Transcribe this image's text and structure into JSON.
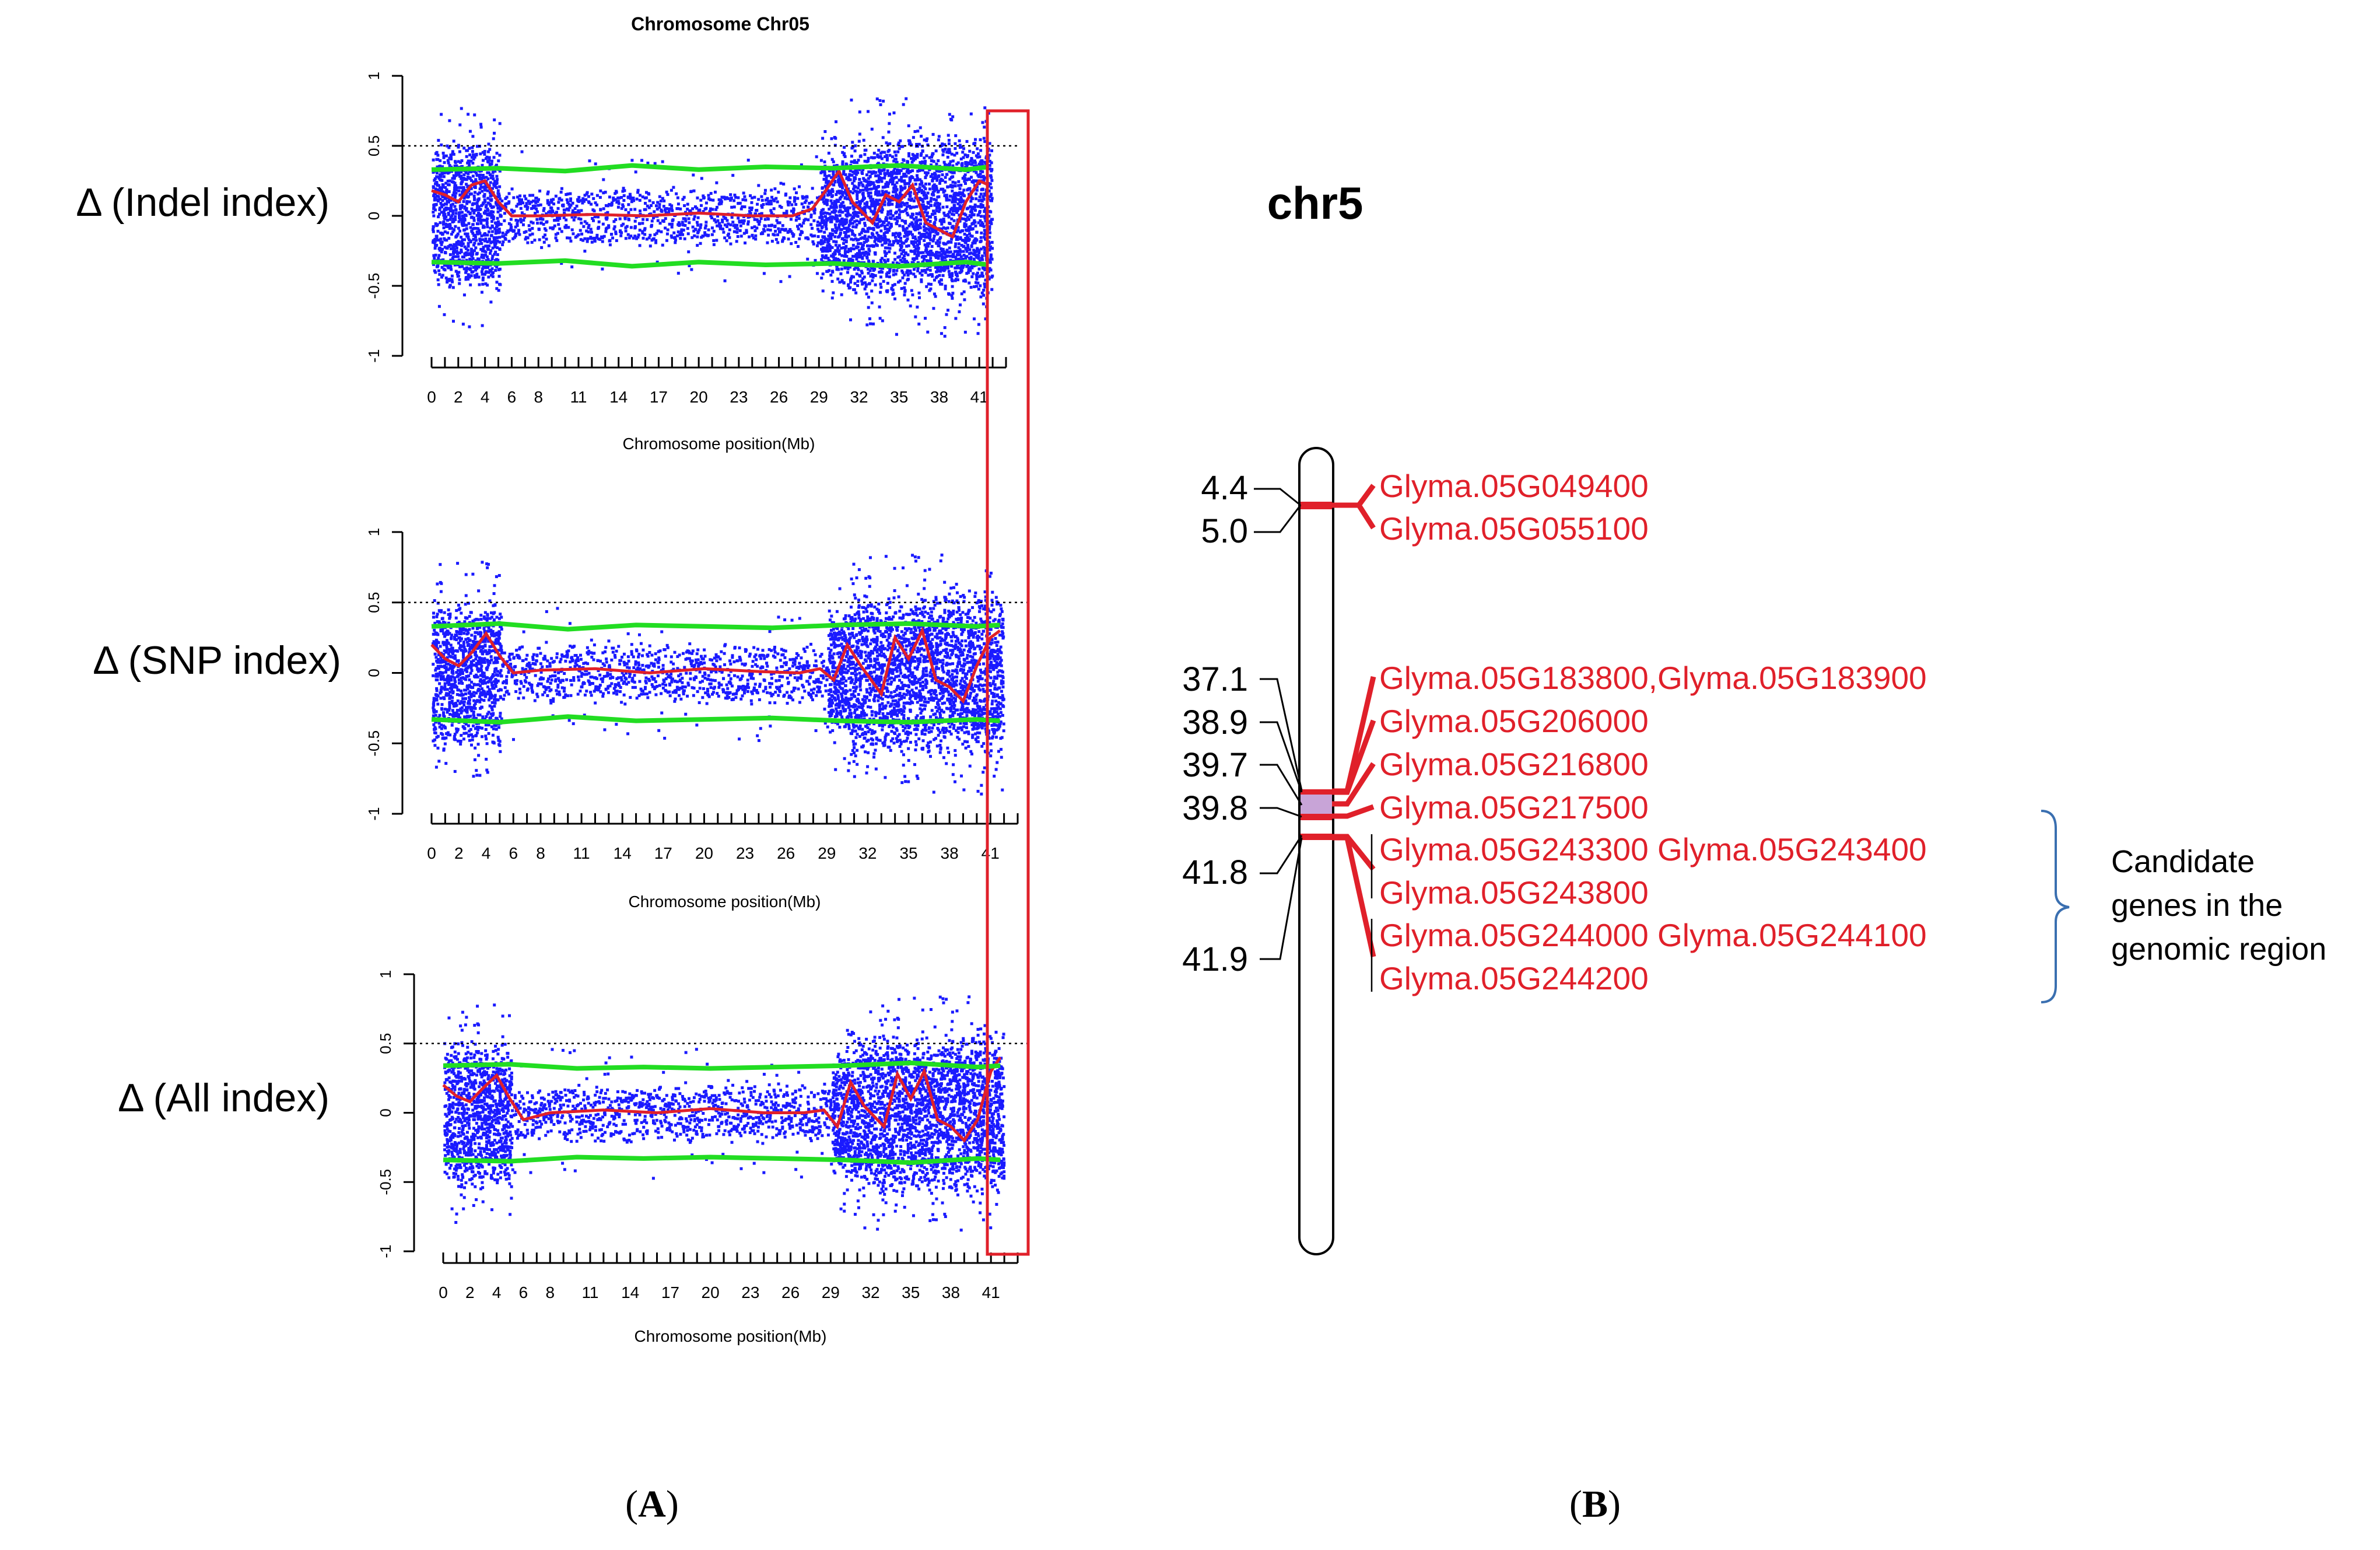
{
  "panel_a": {
    "title": "Chromosome Chr05",
    "panel_label_prefix": "(",
    "panel_label_letter": "A",
    "panel_label_suffix": ")",
    "colors": {
      "points": "#1a1aff",
      "smooth": "#e0202a",
      "threshold": "#22dd22",
      "highlight_box": "#e0202a",
      "dotted": "#000000"
    }
  },
  "panel_b": {
    "chromosome_label": "chr5",
    "panel_label_prefix": "(",
    "panel_label_letter": "B",
    "panel_label_suffix": ")",
    "positions": [
      "4.4",
      "5.0",
      "37.1",
      "38.9",
      "39.7",
      "39.8",
      "41.8",
      "41.9"
    ],
    "genes": [
      "Glyma.05G049400",
      "Glyma.05G055100",
      "Glyma.05G183800,Glyma.05G183900",
      "Glyma.05G206000",
      "Glyma.05G216800",
      "Glyma.05G217500",
      "Glyma.05G243300 Glyma.05G243400",
      "Glyma.05G243800",
      "Glyma.05G244000 Glyma.05G244100",
      "Glyma.05G244200"
    ],
    "candidate_note": [
      "Candidate",
      "genes in the",
      "genomic region"
    ],
    "colors": {
      "gene_text": "#e0202a",
      "marker": "#e0202a",
      "bracket": "#3a6fb0",
      "highlight": "#9b59b6"
    }
  },
  "chart_data": [
    {
      "type": "scatter",
      "title": "Chromosome Chr05",
      "ylabel": "Δ (Indel index)",
      "xlabel": "Chromosome position(Mb)",
      "xlim": [
        0,
        43
      ],
      "ylim": [
        -1,
        1
      ],
      "x_tick_labels": [
        "0",
        "2",
        "4",
        "6",
        "8",
        "11",
        "14",
        "17",
        "20",
        "23",
        "26",
        "29",
        "32",
        "35",
        "38",
        "41"
      ],
      "x_tick_values": [
        0,
        2,
        4,
        6,
        8,
        11,
        14,
        17,
        20,
        23,
        26,
        29,
        32,
        35,
        38,
        41
      ],
      "y_tick_labels": [
        "-1",
        "-0.5",
        "0",
        "0.5",
        "1"
      ],
      "y_tick_values": [
        -1,
        -0.5,
        0,
        0.5,
        1
      ],
      "significance_line": 0.5,
      "highlight_region_mb": [
        40.5,
        43
      ],
      "series": [
        {
          "name": "smoothed delta",
          "x": [
            0,
            1,
            2,
            3,
            4,
            5,
            6,
            8,
            12,
            16,
            20,
            24,
            27,
            28.5,
            29.5,
            30.5,
            31.5,
            33,
            34,
            35,
            36,
            37,
            38,
            39,
            40,
            41,
            41.7
          ],
          "y": [
            0.18,
            0.15,
            0.1,
            0.22,
            0.25,
            0.1,
            0.0,
            0.0,
            0.01,
            0.0,
            0.02,
            0.0,
            0.0,
            0.05,
            0.18,
            0.32,
            0.1,
            -0.05,
            0.15,
            0.1,
            0.22,
            -0.05,
            -0.1,
            -0.15,
            0.1,
            0.25,
            0.22
          ]
        },
        {
          "name": "upper threshold",
          "x": [
            0,
            5,
            10,
            15,
            20,
            25,
            30,
            35,
            40,
            41.7
          ],
          "y": [
            0.33,
            0.34,
            0.32,
            0.36,
            0.33,
            0.35,
            0.34,
            0.36,
            0.33,
            0.35
          ]
        },
        {
          "name": "lower threshold",
          "x": [
            0,
            5,
            10,
            15,
            20,
            25,
            30,
            35,
            40,
            41.7
          ],
          "y": [
            -0.33,
            -0.34,
            -0.32,
            -0.36,
            -0.33,
            -0.35,
            -0.34,
            -0.36,
            -0.33,
            -0.35
          ]
        }
      ]
    },
    {
      "type": "scatter",
      "title": "",
      "ylabel": "Δ (SNP index)",
      "xlabel": "Chromosome position(Mb)",
      "xlim": [
        0,
        43
      ],
      "ylim": [
        -1,
        1
      ],
      "x_tick_labels": [
        "0",
        "2",
        "4",
        "6",
        "8",
        "11",
        "14",
        "17",
        "20",
        "23",
        "26",
        "29",
        "32",
        "35",
        "38",
        "41"
      ],
      "x_tick_values": [
        0,
        2,
        4,
        6,
        8,
        11,
        14,
        17,
        20,
        23,
        26,
        29,
        32,
        35,
        38,
        41
      ],
      "y_tick_labels": [
        "-1",
        "-0.5",
        "0",
        "0.5",
        "1"
      ],
      "y_tick_values": [
        -1,
        -0.5,
        0,
        0.5,
        1
      ],
      "significance_line": 0.5,
      "highlight_region_mb": [
        40.5,
        43
      ],
      "series": [
        {
          "name": "smoothed delta",
          "x": [
            0,
            1,
            2,
            3,
            4,
            5,
            6,
            8,
            12,
            16,
            20,
            24,
            27,
            28.5,
            29.5,
            30.5,
            31.5,
            33,
            34,
            35,
            36,
            37,
            38,
            39,
            40,
            41,
            41.7
          ],
          "y": [
            0.2,
            0.1,
            0.05,
            0.15,
            0.28,
            0.12,
            0.0,
            0.02,
            0.03,
            0.0,
            0.03,
            0.01,
            0.0,
            0.03,
            -0.05,
            0.2,
            0.05,
            -0.15,
            0.25,
            0.1,
            0.3,
            -0.05,
            -0.1,
            -0.2,
            0.05,
            0.25,
            0.3
          ]
        },
        {
          "name": "upper threshold",
          "x": [
            0,
            5,
            10,
            15,
            20,
            25,
            30,
            35,
            40,
            41.7
          ],
          "y": [
            0.33,
            0.35,
            0.31,
            0.34,
            0.33,
            0.32,
            0.34,
            0.35,
            0.33,
            0.34
          ]
        },
        {
          "name": "lower threshold",
          "x": [
            0,
            5,
            10,
            15,
            20,
            25,
            30,
            35,
            40,
            41.7
          ],
          "y": [
            -0.33,
            -0.35,
            -0.31,
            -0.34,
            -0.33,
            -0.32,
            -0.34,
            -0.35,
            -0.33,
            -0.34
          ]
        }
      ]
    },
    {
      "type": "scatter",
      "title": "",
      "ylabel": "Δ (All index)",
      "xlabel": "Chromosome position(Mb)",
      "xlim": [
        0,
        43
      ],
      "ylim": [
        -1,
        1
      ],
      "x_tick_labels": [
        "0",
        "2",
        "4",
        "6",
        "8",
        "11",
        "14",
        "17",
        "20",
        "23",
        "26",
        "29",
        "32",
        "35",
        "38",
        "41"
      ],
      "x_tick_values": [
        0,
        2,
        4,
        6,
        8,
        11,
        14,
        17,
        20,
        23,
        26,
        29,
        32,
        35,
        38,
        41
      ],
      "y_tick_labels": [
        "-1",
        "-0.5",
        "0",
        "0.5",
        "1"
      ],
      "y_tick_values": [
        -1,
        -0.5,
        0,
        0.5,
        1
      ],
      "significance_line": 0.5,
      "highlight_region_mb": [
        40.5,
        43
      ],
      "series": [
        {
          "name": "smoothed delta",
          "x": [
            0,
            1,
            2,
            3,
            4,
            5,
            6,
            8,
            12,
            16,
            20,
            24,
            27,
            28.5,
            29.5,
            30.5,
            31.5,
            33,
            34,
            35,
            36,
            37,
            38,
            39,
            40,
            41,
            41.7
          ],
          "y": [
            0.2,
            0.12,
            0.08,
            0.18,
            0.27,
            0.1,
            -0.05,
            0.0,
            0.02,
            0.0,
            0.03,
            0.0,
            0.0,
            0.02,
            -0.1,
            0.22,
            0.05,
            -0.1,
            0.28,
            0.1,
            0.3,
            -0.05,
            -0.1,
            -0.2,
            -0.05,
            0.3,
            0.4
          ]
        },
        {
          "name": "upper threshold",
          "x": [
            0,
            5,
            10,
            15,
            20,
            25,
            30,
            35,
            40,
            41.7
          ],
          "y": [
            0.34,
            0.35,
            0.32,
            0.33,
            0.32,
            0.33,
            0.34,
            0.36,
            0.33,
            0.34
          ]
        },
        {
          "name": "lower threshold",
          "x": [
            0,
            5,
            10,
            15,
            20,
            25,
            30,
            35,
            40,
            41.7
          ],
          "y": [
            -0.34,
            -0.35,
            -0.32,
            -0.33,
            -0.32,
            -0.33,
            -0.34,
            -0.36,
            -0.33,
            -0.34
          ]
        }
      ]
    }
  ]
}
